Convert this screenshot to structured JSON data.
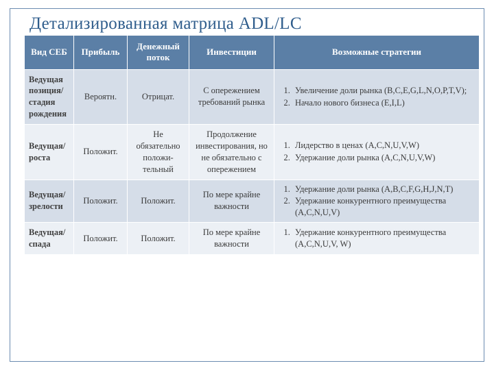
{
  "title": "Детализированная матрица ADL/LC",
  "columns": [
    "Вид СЕБ",
    "Прибыль",
    "Денежный поток",
    "Инвестиции",
    "Возможные стратегии"
  ],
  "colors": {
    "header_bg": "#5b7fa6",
    "header_fg": "#ffffff",
    "band_a": "#d5dde8",
    "band_b": "#ecf0f5",
    "title_color": "#2f5d8c",
    "frame_border": "#6a8bb0",
    "text": "#3a3a3a"
  },
  "rows": [
    {
      "label": "Ведущая позиция/ стадия рождения",
      "profit": "Вероятн.",
      "cashflow": "Отрицат.",
      "invest": "С опережением требований рынка",
      "strategies": [
        "Увеличение доли рынка (B,C,E,G,L,N,O,P,T,V);",
        "Начало нового бизнеса (E,I,L)"
      ]
    },
    {
      "label": "Ведущая/ роста",
      "profit": "Положит.",
      "cashflow": "Не обязательно положи-тельный",
      "invest": "Продолжение инвестирования, но не обязательно с опережением",
      "strategies": [
        "Лидерство в ценах (A,C,N,U,V,W)",
        "Удержание доли рынка (A,C,N,U,V,W)"
      ]
    },
    {
      "label": "Ведущая/ зрелости",
      "profit": "Положит.",
      "cashflow": "Положит.",
      "invest": "По мере крайне важности",
      "strategies": [
        "Удержание доли рынка (A,B,C,F,G,H,J,N,T)",
        "Удержание конкурентного преимущества (A,C,N,U,V)"
      ]
    },
    {
      "label": "Ведущая/ спада",
      "profit": "Положит.",
      "cashflow": "Положит.",
      "invest": "По мере крайне важности",
      "strategies": [
        "Удержание конкурентного преимущества (A,C,N,U,V, W)"
      ]
    }
  ]
}
